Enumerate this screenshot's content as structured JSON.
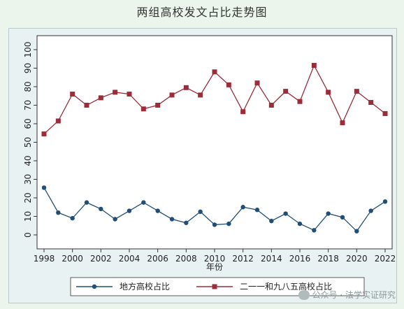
{
  "title": "两组高校发文占比走势图",
  "watermark": "公众号 · 法学实证研究",
  "chart_data": {
    "type": "line",
    "title": "两组高校发文占比走势图",
    "xlabel": "年份",
    "ylabel": "",
    "x": [
      1998,
      1999,
      2000,
      2001,
      2002,
      2003,
      2004,
      2005,
      2006,
      2007,
      2008,
      2009,
      2010,
      2011,
      2012,
      2013,
      2014,
      2015,
      2016,
      2017,
      2018,
      2019,
      2020,
      2021,
      2022
    ],
    "xticks": [
      "1998",
      "2000",
      "2002",
      "2004",
      "2006",
      "2008",
      "2010",
      "2012",
      "2014",
      "2016",
      "2018",
      "2020",
      "2022"
    ],
    "yticks": [
      "0",
      "10",
      "20",
      "30",
      "40",
      "50",
      "60",
      "70",
      "80",
      "90",
      "100"
    ],
    "ylim": [
      0,
      100
    ],
    "grid": false,
    "legend_position": "bottom",
    "series": [
      {
        "name": "地方高校占比",
        "color": "#1f4e79",
        "marker": "circle",
        "values": [
          25.5,
          12,
          9,
          17.5,
          14,
          8.5,
          13,
          17.5,
          13,
          8.5,
          6.5,
          12.5,
          5.5,
          6,
          15,
          13.5,
          7.5,
          11.5,
          6,
          2.5,
          11.5,
          9.5,
          2,
          13,
          18
        ]
      },
      {
        "name": "二一一和九八五高校占比",
        "color": "#9b2c3a",
        "marker": "square",
        "values": [
          54.5,
          61.5,
          76,
          70,
          74,
          77,
          76,
          68,
          70,
          75.5,
          79.5,
          75.5,
          88,
          81,
          66.5,
          82,
          70,
          77.5,
          72,
          91.5,
          77,
          60.5,
          77.5,
          71.5,
          65.5
        ]
      }
    ]
  }
}
